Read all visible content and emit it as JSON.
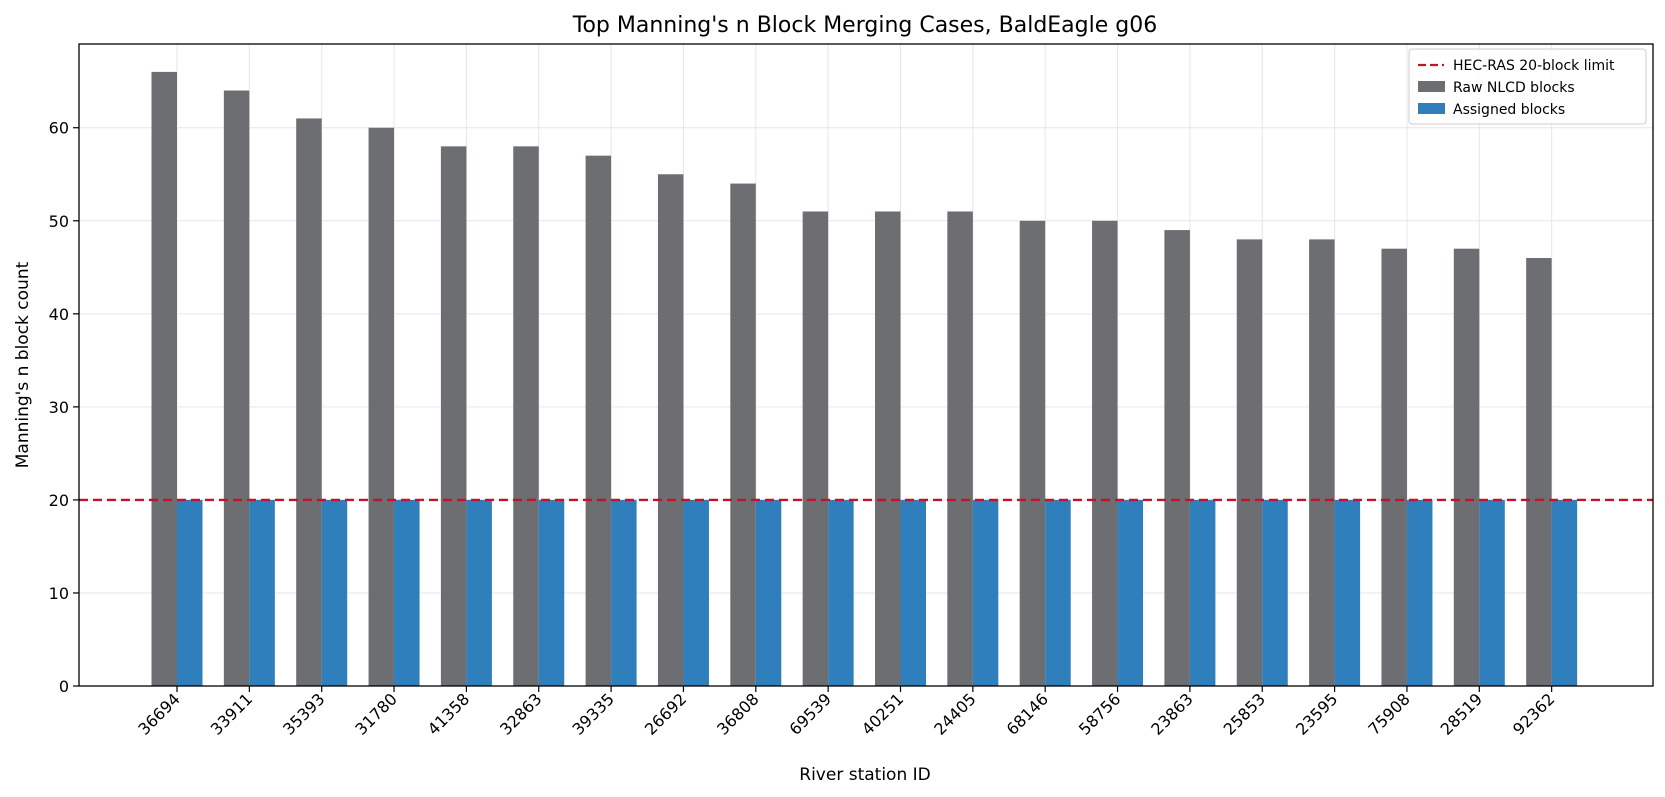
{
  "chart_data": {
    "type": "bar",
    "title": "Top Manning's n Block Merging Cases, BaldEagle g06",
    "xlabel": "River station ID",
    "ylabel": "Manning's n block count",
    "ylim": [
      0,
      69
    ],
    "yticks": [
      0,
      10,
      20,
      30,
      40,
      50,
      60
    ],
    "grid": true,
    "legend_position": "top-right",
    "categories": [
      "36694",
      "33911",
      "35393",
      "31780",
      "41358",
      "32863",
      "39335",
      "26692",
      "36808",
      "69539",
      "40251",
      "24405",
      "68146",
      "58756",
      "23863",
      "25853",
      "23595",
      "75908",
      "28519",
      "92362"
    ],
    "series": [
      {
        "name": "Raw NLCD blocks",
        "color": "#6d6e71",
        "values": [
          66,
          64,
          61,
          60,
          58,
          58,
          57,
          55,
          54,
          51,
          51,
          51,
          50,
          50,
          49,
          48,
          48,
          47,
          47,
          46
        ]
      },
      {
        "name": "Assigned blocks",
        "color": "#2e7fbb",
        "values": [
          20,
          20,
          20,
          20,
          20,
          20,
          20,
          20,
          20,
          20,
          20,
          20,
          20,
          20,
          20,
          20,
          20,
          20,
          20,
          20
        ]
      }
    ],
    "reference_line": {
      "name": "HEC-RAS 20-block limit",
      "y": 20,
      "color": "#c0142a",
      "style": "dashed"
    }
  }
}
